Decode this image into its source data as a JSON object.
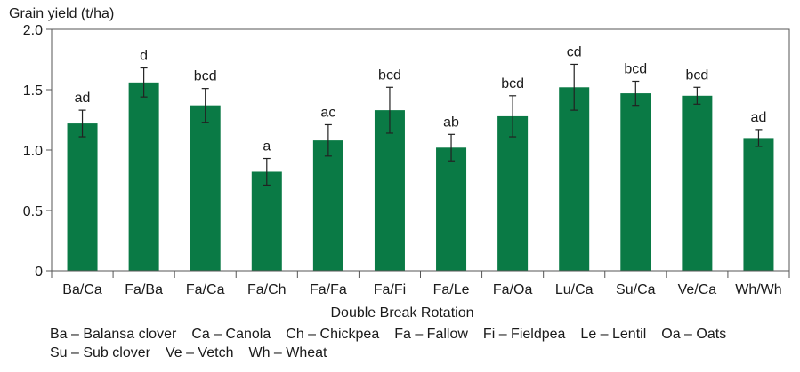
{
  "chart_data": {
    "type": "bar",
    "ylabel": "Grain yield (t/ha)",
    "xlabel": "Double Break Rotation",
    "ylim": [
      0,
      2.0
    ],
    "yticks": [
      0,
      0.5,
      1.0,
      1.5,
      2.0
    ],
    "ytick_labels": [
      "0",
      "0.5",
      "1.0",
      "1.5",
      "2.0"
    ],
    "grid": false,
    "bar_color": "#0a7a45",
    "categories": [
      "Ba/Ca",
      "Fa/Ba",
      "Fa/Ca",
      "Fa/Ch",
      "Fa/Fa",
      "Fa/Fi",
      "Fa/Le",
      "Fa/Oa",
      "Lu/Ca",
      "Su/Ca",
      "Ve/Ca",
      "Wh/Wh"
    ],
    "values": [
      1.22,
      1.56,
      1.37,
      0.82,
      1.08,
      1.33,
      1.02,
      1.28,
      1.52,
      1.47,
      1.45,
      1.1
    ],
    "errors": [
      0.11,
      0.12,
      0.14,
      0.11,
      0.13,
      0.19,
      0.11,
      0.17,
      0.19,
      0.1,
      0.07,
      0.07
    ],
    "significance_labels": [
      "ad",
      "d",
      "bcd",
      "a",
      "ac",
      "bcd",
      "ab",
      "bcd",
      "cd",
      "bcd",
      "bcd",
      "ad"
    ]
  },
  "legend": {
    "line1": [
      "Ba – Balansa clover",
      "Ca – Canola",
      "Ch – Chickpea",
      "Fa – Fallow",
      "Fi – Fieldpea",
      "Le – Lentil",
      "Oa – Oats"
    ],
    "line2": [
      "Su – Sub clover",
      "Ve – Vetch",
      "Wh – Wheat"
    ]
  }
}
